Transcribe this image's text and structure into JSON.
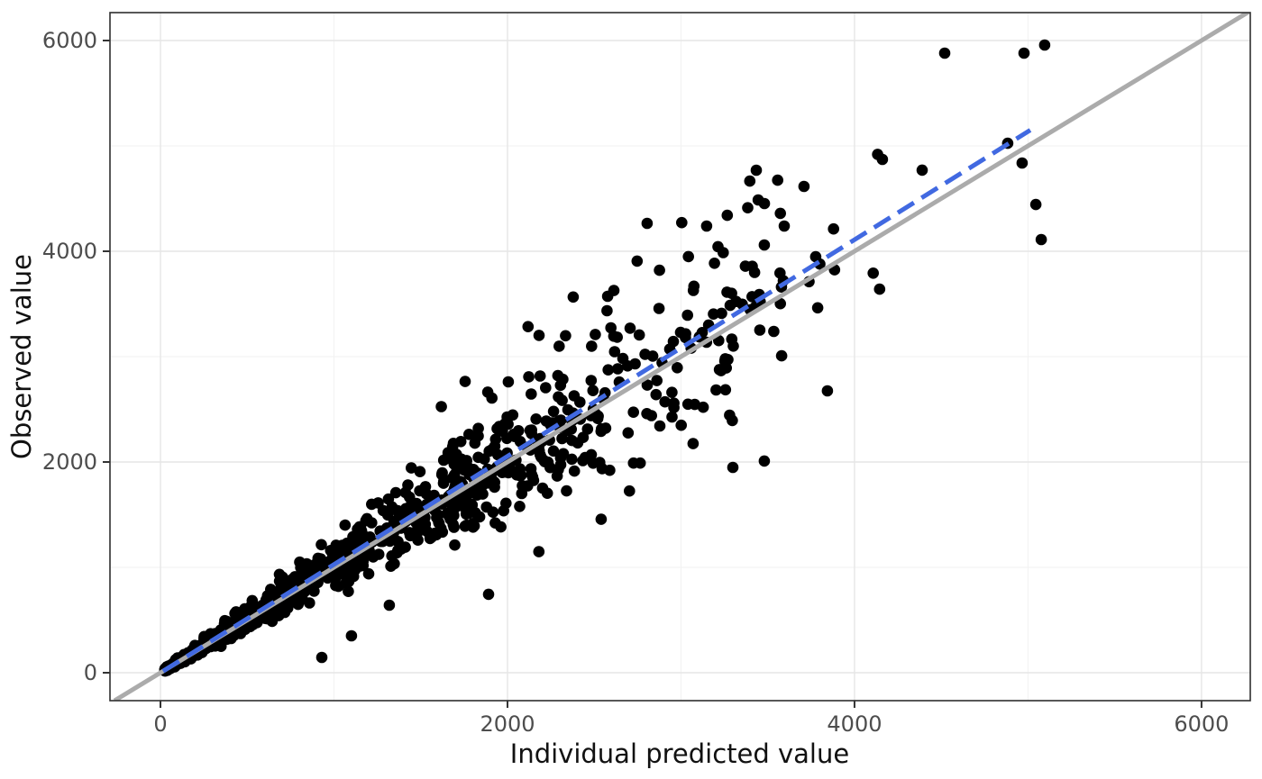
{
  "chart_data": {
    "type": "scatter",
    "title": "",
    "xlabel": "Individual predicted value",
    "ylabel": "Observed value",
    "x_ticks": [
      0,
      2000,
      4000,
      6000
    ],
    "x_minor_ticks": [
      1000,
      3000,
      5000
    ],
    "y_ticks": [
      0,
      2000,
      4000,
      6000
    ],
    "y_minor_ticks": [
      1000,
      3000,
      5000
    ],
    "xlim": [
      -291,
      6281
    ],
    "ylim": [
      -265,
      6265
    ],
    "grid": "major and minor, light gray on white panel",
    "legend": "none",
    "points_style": {
      "color": "#000000",
      "radius": 6.3
    },
    "identity_line": {
      "label": "identity line y = x",
      "color": "#ABABAB",
      "width": 5,
      "style": "solid",
      "x1": -265,
      "y1": -265,
      "x2": 6270,
      "y2": 6270
    },
    "fit_line": {
      "label": "regression fit",
      "color": "#4169E1",
      "width": 5,
      "style": "dashed",
      "dash": [
        21,
        10
      ],
      "x1": 15,
      "y1": 15,
      "x2": 5013,
      "y2": 5150
    },
    "notable_points": [
      [
        4520,
        5880
      ],
      [
        4977,
        5880
      ],
      [
        5096,
        5957
      ],
      [
        4883,
        5025
      ],
      [
        4966,
        4838
      ],
      [
        4390,
        4770
      ],
      [
        4161,
        4872
      ],
      [
        5045,
        4444
      ],
      [
        5076,
        4111
      ],
      [
        3434,
        4769
      ],
      [
        3709,
        4615
      ],
      [
        3445,
        4487
      ],
      [
        2805,
        4265
      ],
      [
        3148,
        4239
      ],
      [
        3595,
        4239
      ],
      [
        3480,
        4060
      ],
      [
        2747,
        3907
      ],
      [
        3043,
        3950
      ],
      [
        2876,
        3820
      ],
      [
        2379,
        3566
      ],
      [
        1619,
        2526
      ],
      [
        3844,
        2675
      ],
      [
        3299,
        1949
      ],
      [
        3480,
        2009
      ],
      [
        2540,
        1456
      ],
      [
        2181,
        1149
      ],
      [
        930,
        145
      ],
      [
        1101,
        350
      ],
      [
        1319,
        641
      ],
      [
        1891,
        744
      ]
    ],
    "cloud_spec": {
      "description": "dense heteroscedastic cloud along y=x, fanning out with x",
      "seed": 11,
      "clusters": [
        {
          "n": 660,
          "x_min": 25,
          "x_span": 1650,
          "x_pow": 1.55,
          "rel_sd": 0.1,
          "abs_sd": 8,
          "up_mult": 1.4
        },
        {
          "n": 235,
          "x_min": 1680,
          "x_span": 920,
          "x_pow": 1.4,
          "rel_sd": 0.135,
          "abs_sd": 0,
          "up_mult": 1.4
        },
        {
          "n": 95,
          "x_min": 2600,
          "x_span": 1000,
          "x_pow": 1.15,
          "rel_sd": 0.16,
          "abs_sd": 0,
          "up_mult": 1.25
        },
        {
          "n": 9,
          "x_min": 3600,
          "x_span": 680,
          "x_pow": 1.0,
          "rel_sd": 0.13,
          "abs_sd": 0,
          "up_mult": 1.2
        }
      ],
      "ratio_clamp": [
        0.6,
        1.58
      ],
      "y_max": 6050
    },
    "colors": {
      "background": "#FFFFFF",
      "panel_background": "#FFFFFF",
      "grid_major": "#E6E6E6",
      "grid_minor": "#F2F2F2",
      "panel_border": "#2F2F2F",
      "tick_mark": "#333333",
      "tick_label": "#4D4D4D",
      "axis_title": "#111111",
      "point": "#000000",
      "identity_line": "#ABABAB",
      "fit_line": "#4169E1"
    }
  }
}
